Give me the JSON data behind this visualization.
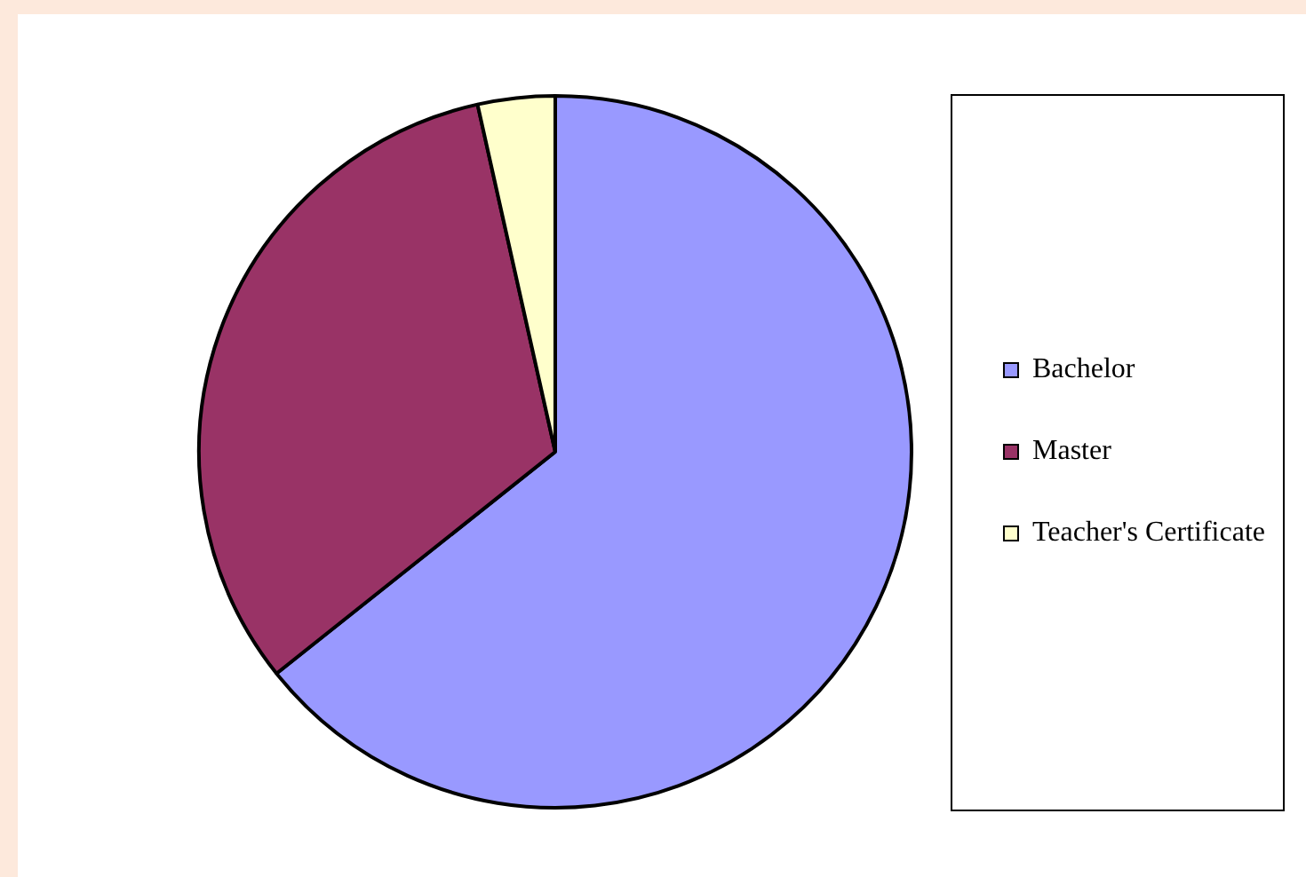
{
  "chart_data": {
    "type": "pie",
    "categories": [
      "Bachelor",
      "Master",
      "Teacher's Certificate"
    ],
    "values": [
      64.3,
      32.2,
      3.5
    ],
    "colors": [
      "#9999ff",
      "#993366",
      "#ffffcc"
    ],
    "legend": "right"
  }
}
